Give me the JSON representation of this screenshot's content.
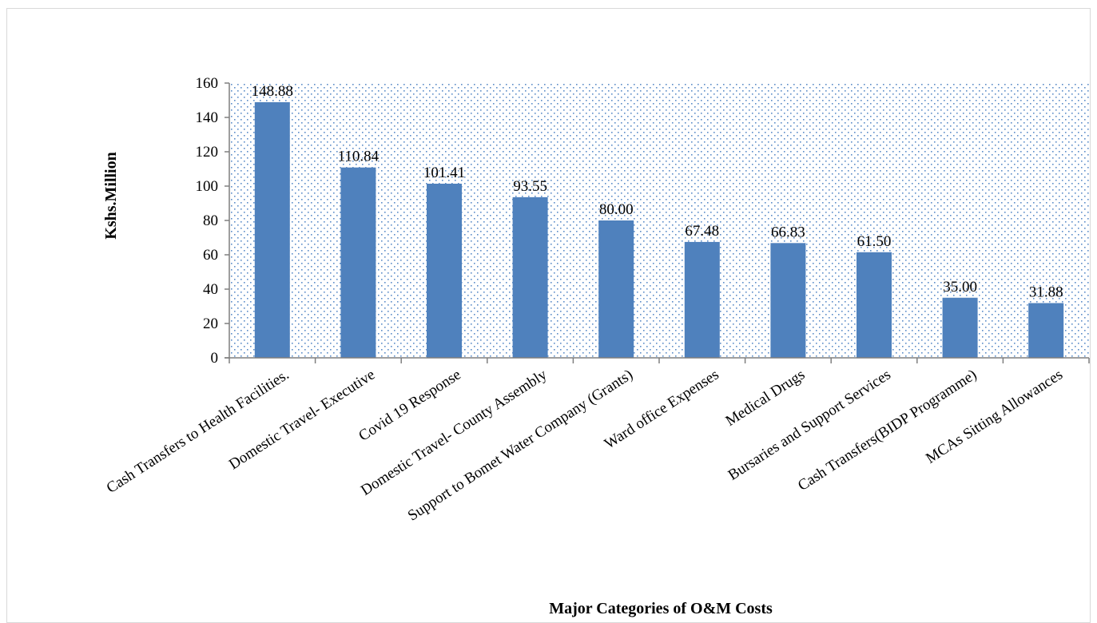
{
  "chart_data": {
    "type": "bar",
    "title": "",
    "xlabel": "Major Categories of O&M Costs",
    "ylabel": "Kshs.Million",
    "ylim": [
      0,
      160
    ],
    "yticks": [
      0,
      20,
      40,
      60,
      80,
      100,
      120,
      140,
      160
    ],
    "grid": false,
    "plot_background": "dotted blue pattern",
    "bar_color": "#4f81bd",
    "categories": [
      "Cash Transfers to Health Facilities.",
      "Domestic  Travel- Executive",
      "Covid 19 Response",
      "Domestic  Travel- County Assembly",
      "Support to Bomet Water Company (Grants)",
      "Ward office Expenses",
      "Medical Drugs",
      "Bursaries and Support Services",
      "Cash Transfers(BIDP Programme)",
      "MCAs Sitting Allowances"
    ],
    "values": [
      148.88,
      110.84,
      101.41,
      93.55,
      80.0,
      67.48,
      66.83,
      61.5,
      35.0,
      31.88
    ],
    "value_labels": [
      "148.88",
      "110.84",
      "101.41",
      "93.55",
      "80.00",
      "67.48",
      "66.83",
      "61.50",
      "35.00",
      "31.88"
    ]
  }
}
